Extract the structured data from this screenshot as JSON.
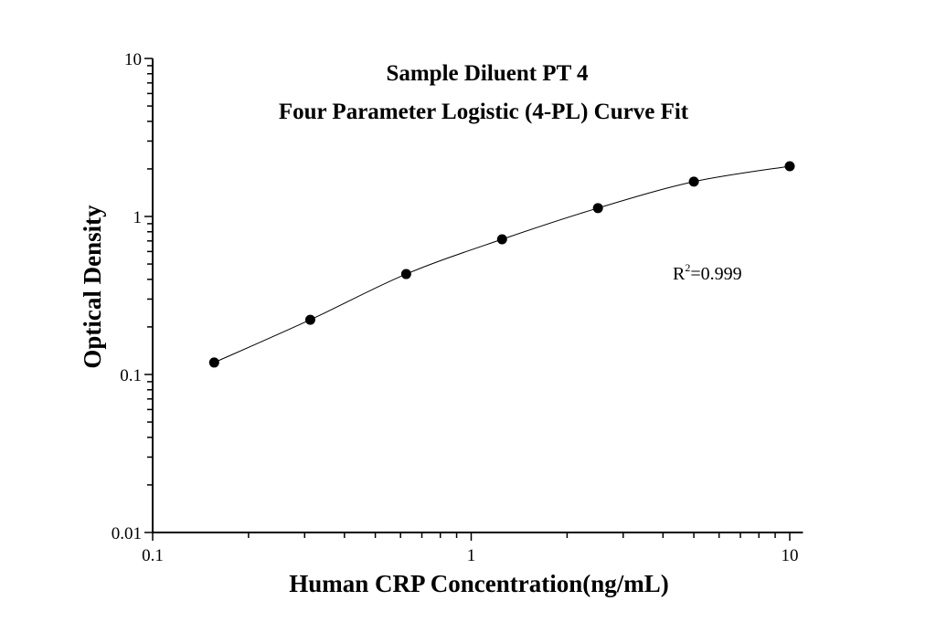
{
  "chart_data": {
    "type": "scatter",
    "title": [
      "Sample Diluent PT 4",
      "Four Parameter Logistic (4-PL) Curve Fit"
    ],
    "xlabel": "Human CRP Concentration(ng/mL)",
    "ylabel": "Optical Density",
    "xscale": "log",
    "yscale": "log",
    "xlim": [
      0.1,
      11
    ],
    "ylim": [
      0.01,
      10
    ],
    "xticks": [
      "0.1",
      "1",
      "10"
    ],
    "yticks": [
      "0.01",
      "0.1",
      "1",
      "10"
    ],
    "grid": false,
    "legend": "none",
    "series": [
      {
        "x": [
          0.156,
          0.3125,
          0.625,
          1.25,
          2.5,
          5,
          10
        ],
        "y": [
          0.119,
          0.222,
          0.432,
          0.717,
          1.13,
          1.66,
          2.08
        ],
        "marker": "filled-circle",
        "color": "#000000",
        "fit": "4-PL curve"
      }
    ],
    "annotation": {
      "prefix": "R",
      "superscript": "2",
      "suffix": "=0.999"
    }
  }
}
